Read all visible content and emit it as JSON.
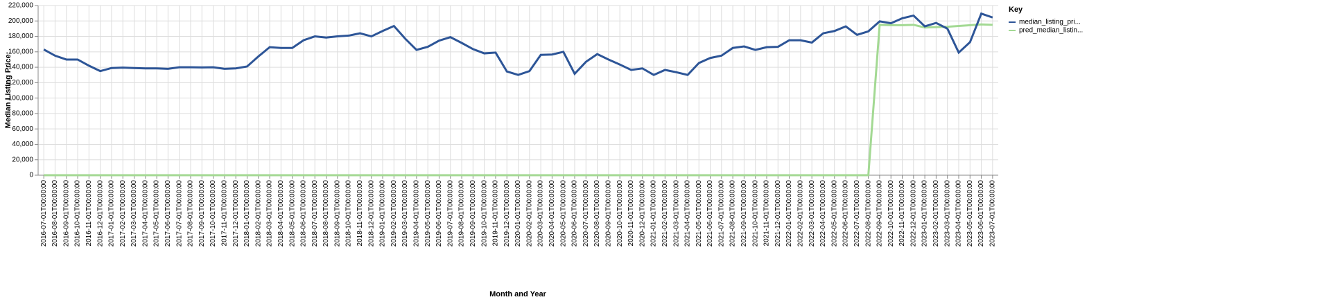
{
  "chart_data": {
    "type": "line",
    "xlabel": "Month and Year",
    "ylabel": "Median Listing Price:",
    "legend_title": "Key",
    "legend_position": "right",
    "grid": true,
    "categories": [
      "2016-07-01T00:00:00",
      "2016-08-01T00:00:00",
      "2016-09-01T00:00:00",
      "2016-10-01T00:00:00",
      "2016-11-01T00:00:00",
      "2016-12-01T00:00:00",
      "2017-01-01T00:00:00",
      "2017-02-01T00:00:00",
      "2017-03-01T00:00:00",
      "2017-04-01T00:00:00",
      "2017-05-01T00:00:00",
      "2017-06-01T00:00:00",
      "2017-07-01T00:00:00",
      "2017-08-01T00:00:00",
      "2017-09-01T00:00:00",
      "2017-10-01T00:00:00",
      "2017-11-01T00:00:00",
      "2017-12-01T00:00:00",
      "2018-01-01T00:00:00",
      "2018-02-01T00:00:00",
      "2018-03-01T00:00:00",
      "2018-04-01T00:00:00",
      "2018-05-01T00:00:00",
      "2018-06-01T00:00:00",
      "2018-07-01T00:00:00",
      "2018-08-01T00:00:00",
      "2018-09-01T00:00:00",
      "2018-10-01T00:00:00",
      "2018-11-01T00:00:00",
      "2018-12-01T00:00:00",
      "2019-01-01T00:00:00",
      "2019-02-01T00:00:00",
      "2019-03-01T00:00:00",
      "2019-04-01T00:00:00",
      "2019-05-01T00:00:00",
      "2019-06-01T00:00:00",
      "2019-07-01T00:00:00",
      "2019-08-01T00:00:00",
      "2019-09-01T00:00:00",
      "2019-10-01T00:00:00",
      "2019-11-01T00:00:00",
      "2019-12-01T00:00:00",
      "2020-01-01T00:00:00",
      "2020-02-01T00:00:00",
      "2020-03-01T00:00:00",
      "2020-04-01T00:00:00",
      "2020-05-01T00:00:00",
      "2020-06-01T00:00:00",
      "2020-07-01T00:00:00",
      "2020-08-01T00:00:00",
      "2020-09-01T00:00:00",
      "2020-10-01T00:00:00",
      "2020-11-01T00:00:00",
      "2020-12-01T00:00:00",
      "2021-01-01T00:00:00",
      "2021-02-01T00:00:00",
      "2021-03-01T00:00:00",
      "2021-04-01T00:00:00",
      "2021-05-01T00:00:00",
      "2021-06-01T00:00:00",
      "2021-07-01T00:00:00",
      "2021-08-01T00:00:00",
      "2021-09-01T00:00:00",
      "2021-10-01T00:00:00",
      "2021-11-01T00:00:00",
      "2021-12-01T00:00:00",
      "2022-01-01T00:00:00",
      "2022-02-01T00:00:00",
      "2022-03-01T00:00:00",
      "2022-04-01T00:00:00",
      "2022-05-01T00:00:00",
      "2022-06-01T00:00:00",
      "2022-07-01T00:00:00",
      "2022-08-01T00:00:00",
      "2022-09-01T00:00:00",
      "2022-10-01T00:00:00",
      "2022-11-01T00:00:00",
      "2022-12-01T00:00:00",
      "2023-01-01T00:00:00",
      "2023-02-01T00:00:00",
      "2023-03-01T00:00:00",
      "2023-04-01T00:00:00",
      "2023-05-01T00:00:00",
      "2023-06-01T00:00:00",
      "2023-07-01T00:00:00"
    ],
    "series": [
      {
        "name": "median_listing_pri...",
        "color": "#2d5597",
        "values": [
          163000,
          155000,
          150000,
          150000,
          142000,
          135000,
          139000,
          139500,
          139000,
          138500,
          138500,
          138000,
          140000,
          140000,
          139800,
          140000,
          138000,
          138500,
          141000,
          154000,
          166000,
          165000,
          165000,
          175000,
          180000,
          178500,
          180000,
          181000,
          184000,
          180000,
          187000,
          193500,
          177000,
          162500,
          166500,
          174500,
          179000,
          171500,
          163500,
          158000,
          159000,
          134500,
          130000,
          135000,
          156000,
          156500,
          160000,
          131500,
          147000,
          157000,
          150000,
          143500,
          136500,
          138500,
          130000,
          136500,
          133500,
          130000,
          145500,
          152000,
          155000,
          165000,
          167000,
          162500,
          166000,
          166500,
          175000,
          175000,
          172000,
          184000,
          187000,
          193000,
          182000,
          186500,
          199500,
          197000,
          203500,
          207000,
          193000,
          197500,
          190000,
          159000,
          172500,
          209500,
          204500
        ]
      },
      {
        "name": "pred_median_listin...",
        "color": "#a3d993",
        "values": [
          0,
          0,
          0,
          0,
          0,
          0,
          0,
          0,
          0,
          0,
          0,
          0,
          0,
          0,
          0,
          0,
          0,
          0,
          0,
          0,
          0,
          0,
          0,
          0,
          0,
          0,
          0,
          0,
          0,
          0,
          0,
          0,
          0,
          0,
          0,
          0,
          0,
          0,
          0,
          0,
          0,
          0,
          0,
          0,
          0,
          0,
          0,
          0,
          0,
          0,
          0,
          0,
          0,
          0,
          0,
          0,
          0,
          0,
          0,
          0,
          0,
          0,
          0,
          0,
          0,
          0,
          0,
          0,
          0,
          0,
          0,
          0,
          0,
          0,
          195000,
          194500,
          194500,
          195000,
          191500,
          192000,
          192500,
          193500,
          194500,
          195500,
          195000
        ]
      }
    ],
    "ylim": [
      0,
      220000
    ],
    "yticks": [
      0,
      {
        "value": 20000,
        "label": "20,000"
      },
      {
        "value": 40000,
        "label": "40,000"
      },
      {
        "value": 60000,
        "label": "60,000"
      },
      {
        "value": 80000,
        "label": "80,000"
      },
      {
        "value": 100000,
        "label": "100,000"
      },
      {
        "value": 120000,
        "label": "120,000"
      },
      {
        "value": 140000,
        "label": "140,000"
      },
      {
        "value": 160000,
        "label": "160,000"
      },
      {
        "value": 180000,
        "label": "180,000"
      },
      {
        "value": 200000,
        "label": "200,000"
      },
      {
        "value": 220000,
        "label": "220,000"
      }
    ]
  }
}
